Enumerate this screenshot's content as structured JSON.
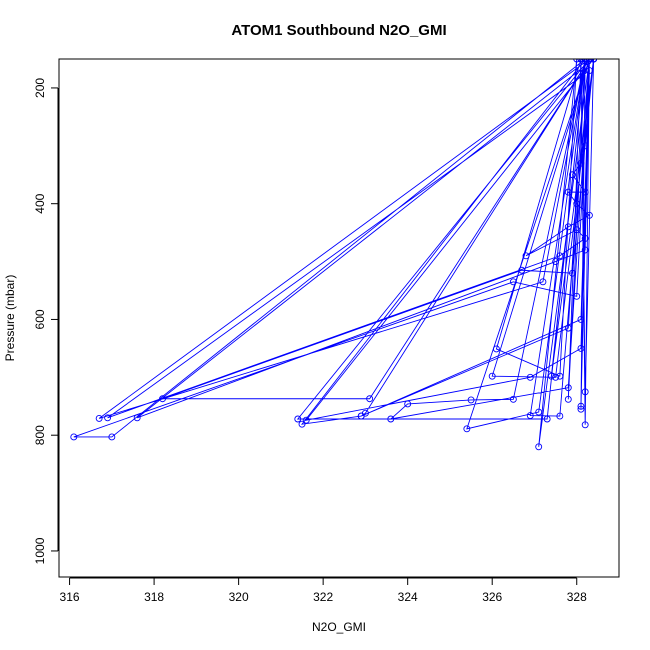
{
  "chart_data": {
    "type": "line",
    "title": "ATOM1 Southbound N2O_GMI",
    "xlabel": "N2O_GMI",
    "ylabel": "Pressure (mbar)",
    "xlim": [
      315.75,
      329.0
    ],
    "ylim": [
      1045,
      150
    ],
    "y_reversed": true,
    "grid": false,
    "legend": "none",
    "color": "#0000ff",
    "x_ticks": [
      316,
      318,
      320,
      322,
      324,
      326,
      328
    ],
    "y_ticks": [
      200,
      400,
      600,
      800,
      1000
    ],
    "series": [
      {
        "points": [
          [
            328.3,
            150
          ],
          [
            328.2,
            300
          ],
          [
            328.1,
            330
          ],
          [
            327.9,
            350
          ],
          [
            328.2,
            380
          ],
          [
            327.8,
            380
          ],
          [
            328.0,
            400
          ],
          [
            328.3,
            420
          ],
          [
            327.8,
            440
          ],
          [
            326.8,
            490
          ],
          [
            328.0,
            445
          ],
          [
            328.2,
            460
          ],
          [
            327.6,
            490
          ],
          [
            316.9,
            770
          ],
          [
            328.3,
            170
          ],
          [
            328.2,
            480
          ],
          [
            327.5,
            500
          ],
          [
            317.6,
            770
          ],
          [
            328.4,
            150
          ],
          [
            327.9,
            520
          ],
          [
            326.7,
            515
          ],
          [
            318.2,
            737
          ],
          [
            323.1,
            737
          ],
          [
            328.3,
            150
          ],
          [
            328.0,
            560
          ],
          [
            326.5,
            535
          ],
          [
            316.1,
            803
          ],
          [
            317.0,
            803
          ],
          [
            328.2,
            150
          ],
          [
            327.2,
            535
          ],
          [
            316.7,
            771
          ],
          [
            328.3,
            150
          ],
          [
            328.1,
            600
          ],
          [
            322.9,
            767
          ],
          [
            321.5,
            781
          ],
          [
            328.2,
            150
          ],
          [
            327.8,
            615
          ],
          [
            322.9,
            767
          ],
          [
            323.0,
            762
          ],
          [
            328.3,
            150
          ],
          [
            328.1,
            650
          ],
          [
            326.9,
            700
          ],
          [
            321.6,
            774
          ],
          [
            328.4,
            150
          ],
          [
            327.5,
            700
          ],
          [
            326.0,
            698
          ],
          [
            328.3,
            150
          ],
          [
            327.8,
            718
          ],
          [
            323.6,
            772
          ],
          [
            324.0,
            746
          ],
          [
            325.5,
            739
          ],
          [
            326.5,
            738
          ],
          [
            328.2,
            150
          ],
          [
            327.1,
            760
          ],
          [
            325.4,
            789
          ],
          [
            328.3,
            150
          ],
          [
            327.6,
            767
          ],
          [
            326.9,
            766
          ],
          [
            328.2,
            150
          ],
          [
            327.3,
            772
          ],
          [
            321.4,
            772
          ],
          [
            328.3,
            150
          ],
          [
            327.1,
            820
          ],
          [
            328.0,
            150
          ],
          [
            327.6,
            698
          ],
          [
            326.1,
            651
          ],
          [
            328.1,
            150
          ],
          [
            327.8,
            738
          ],
          [
            328.2,
            150
          ],
          [
            328.1,
            750
          ],
          [
            328.3,
            150
          ],
          [
            328.2,
            782
          ],
          [
            328.1,
            150
          ],
          [
            328.2,
            725
          ],
          [
            328.4,
            150
          ],
          [
            327.4,
            698
          ],
          [
            328.2,
            150
          ],
          [
            328.1,
            755
          ]
        ]
      }
    ]
  }
}
